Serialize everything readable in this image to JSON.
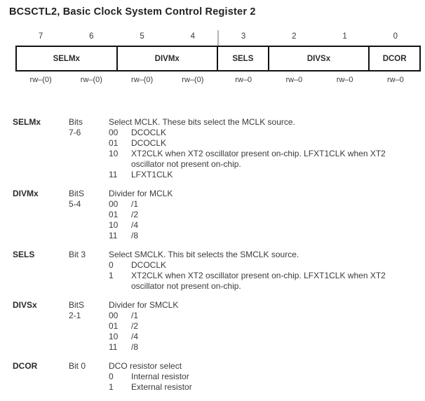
{
  "title": "BCSCTL2, Basic Clock System Control Register 2",
  "register": {
    "bit_numbers": [
      "7",
      "6",
      "5",
      "4",
      "3",
      "2",
      "1",
      "0"
    ],
    "cells": [
      {
        "label": "SELMx"
      },
      {
        "label": "DIVMx"
      },
      {
        "label": "SELS"
      },
      {
        "label": "DIVSx"
      },
      {
        "label": "DCOR"
      }
    ],
    "access": [
      "rw–(0)",
      "rw–(0)",
      "rw–(0)",
      "rw–(0)",
      "rw–0",
      "rw–0",
      "rw–0",
      "rw–0"
    ]
  },
  "fields": [
    {
      "name": "SELMx",
      "bits_label": "Bits",
      "bits_range": "7-6",
      "description": "Select MCLK. These bits select the MCLK source.",
      "values": [
        {
          "code": "00",
          "text": "DCOCLK"
        },
        {
          "code": "01",
          "text": "DCOCLK"
        },
        {
          "code": "10",
          "text": "XT2CLK when XT2 oscillator present on-chip. LFXT1CLK when XT2 oscillator not present on-chip."
        },
        {
          "code": "11",
          "text": "LFXT1CLK"
        }
      ]
    },
    {
      "name": "DIVMx",
      "bits_label": "BitS",
      "bits_range": "5-4",
      "description": "Divider for MCLK",
      "values": [
        {
          "code": "00",
          "text": "/1"
        },
        {
          "code": "01",
          "text": "/2"
        },
        {
          "code": "10",
          "text": "/4"
        },
        {
          "code": "11",
          "text": "/8"
        }
      ]
    },
    {
      "name": "SELS",
      "bits_label": "Bit 3",
      "bits_range": "",
      "description": "Select SMCLK. This bit selects the SMCLK source.",
      "values": [
        {
          "code": "0",
          "text": "DCOCLK"
        },
        {
          "code": "1",
          "text": "XT2CLK when XT2 oscillator present on-chip. LFXT1CLK when XT2 oscillator not present on-chip."
        }
      ]
    },
    {
      "name": "DIVSx",
      "bits_label": "BitS",
      "bits_range": "2-1",
      "description": "Divider for SMCLK",
      "values": [
        {
          "code": "00",
          "text": "/1"
        },
        {
          "code": "01",
          "text": "/2"
        },
        {
          "code": "10",
          "text": "/4"
        },
        {
          "code": "11",
          "text": "/8"
        }
      ]
    },
    {
      "name": "DCOR",
      "bits_label": "Bit 0",
      "bits_range": "",
      "description": "DCO resistor select",
      "values": [
        {
          "code": "0",
          "text": "Internal resistor"
        },
        {
          "code": "1",
          "text": "External resistor"
        }
      ]
    }
  ]
}
